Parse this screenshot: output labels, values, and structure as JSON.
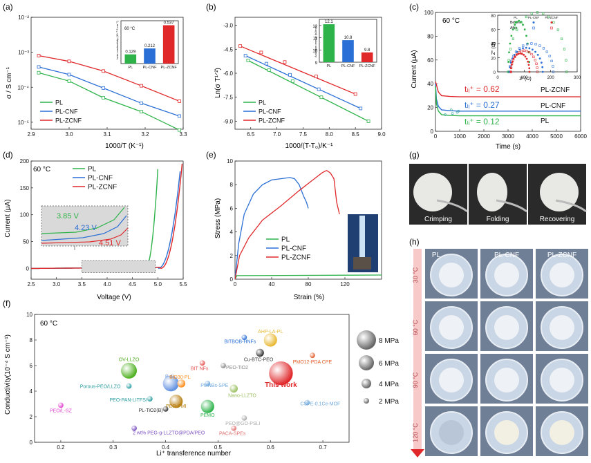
{
  "panel_labels": [
    "(a)",
    "(b)",
    "(c)",
    "(d)",
    "(e)",
    "(f)",
    "(g)",
    "(h)"
  ],
  "colors": {
    "PL": "#2db34a",
    "PL-CNF": "#2a6fd6",
    "PL-ZCNF": "#e0282b"
  },
  "chart_data": [
    {
      "panel": "(a)",
      "type": "line",
      "xlabel": "1000/T (K⁻¹)",
      "ylabel": "σ / S cm⁻¹",
      "xlim": [
        2.9,
        3.3
      ],
      "ylim_log10": [
        -5.2,
        -2
      ],
      "yscale": "log",
      "xticks": [
        "2.9",
        "3.0",
        "3.1",
        "3.2",
        "3.3"
      ],
      "yticks": [
        "10⁻⁵",
        "10⁻⁴",
        "10⁻³",
        "10⁻²"
      ],
      "x": [
        2.92,
        3.0,
        3.09,
        3.19,
        3.29
      ],
      "series": [
        {
          "name": "PL",
          "values": [
            0.00026,
            0.00015,
            5e-05,
            2e-05,
            6e-06
          ]
        },
        {
          "name": "PL-CNF",
          "values": [
            0.00038,
            0.00023,
            9.5e-05,
            3.5e-05,
            1.5e-05
          ]
        },
        {
          "name": "PL-ZCNF",
          "values": [
            0.0008,
            0.00055,
            0.00029,
            0.00011,
            4e-05
          ]
        }
      ],
      "inset": {
        "type": "bar",
        "title": "60 °C",
        "ylabel": "Ionic conductivity (10⁻³ S cm⁻¹)",
        "categories": [
          "PL",
          "PL-CNF",
          "PL-ZCNF"
        ],
        "values": [
          0.129,
          0.212,
          0.537
        ],
        "labels": [
          "0.129",
          "0.212",
          "0.537"
        ],
        "ylim": [
          0,
          0.6
        ]
      }
    },
    {
      "panel": "(b)",
      "type": "line",
      "xlabel": "1000/(T-T₀)/K⁻¹",
      "ylabel": "Ln(σ T¹ᐟ²)",
      "xlim": [
        6.2,
        9.0
      ],
      "ylim": [
        -9.5,
        -2.5
      ],
      "xticks": [
        "6.5",
        "7.0",
        "7.5",
        "8.0",
        "8.5",
        "9.0"
      ],
      "yticks": [
        "-3.0",
        "-4.5",
        "-6.0",
        "-7.5",
        "-9.0"
      ],
      "series": [
        {
          "name": "PL",
          "x": [
            6.45,
            6.85,
            7.3,
            7.85,
            8.75
          ],
          "values": [
            -5.2,
            -5.8,
            -6.5,
            -7.5,
            -9.0
          ]
        },
        {
          "name": "PL-CNF",
          "x": [
            6.4,
            6.8,
            7.25,
            7.8,
            8.6
          ],
          "values": [
            -4.9,
            -5.4,
            -6.1,
            -7.0,
            -8.2
          ]
        },
        {
          "name": "PL-ZCNF",
          "x": [
            6.3,
            6.7,
            7.15,
            7.75,
            8.5
          ],
          "values": [
            -4.3,
            -4.7,
            -5.3,
            -6.2,
            -7.3
          ]
        }
      ],
      "inset": {
        "type": "bar",
        "ylabel": "Activation energy (kJ/mol)",
        "categories": [
          "PL",
          "PL-CNF",
          "PL-ZCNF"
        ],
        "values": [
          12.1,
          10.8,
          9.8
        ],
        "labels": [
          "12.1",
          "10.8",
          "9.8"
        ],
        "ylim": [
          9,
          12.5
        ],
        "yticks": [
          "9",
          "10",
          "11",
          "12"
        ]
      }
    },
    {
      "panel": "(c)",
      "type": "line",
      "xlabel": "Time (s)",
      "ylabel": "Current (μA)",
      "annotation": "60 °C",
      "xlim": [
        0,
        6000
      ],
      "ylim": [
        0,
        100
      ],
      "xticks": [
        "0",
        "1000",
        "2000",
        "3000",
        "4000",
        "5000",
        "6000"
      ],
      "yticks": [
        "0",
        "20",
        "40",
        "60",
        "80",
        "100"
      ],
      "series": [
        {
          "name": "PL-ZCNF",
          "steady": 29,
          "t": "tₗᵢ⁺ = 0.62"
        },
        {
          "name": "PL-CNF",
          "steady": 17,
          "t": "tₗᵢ⁺ = 0.27"
        },
        {
          "name": "PL",
          "steady": 13,
          "t": "tₗᵢ⁺ = 0.12"
        }
      ],
      "inset": {
        "xlabel": "Z' (Ω)",
        "ylabel": "Z'' (Ω)",
        "xlim": [
          0,
          300
        ],
        "ylim": [
          0,
          80
        ],
        "xticks": [
          "0",
          "100",
          "200",
          "300"
        ],
        "yticks": [
          "0",
          "20",
          "40",
          "60",
          "80"
        ],
        "legend_rows": [
          "Before",
          "After"
        ]
      }
    },
    {
      "panel": "(d)",
      "type": "line",
      "xlabel": "Voltage (V)",
      "ylabel": "Current (μA)",
      "annotation": "60 °C",
      "xlim": [
        2.5,
        5.5
      ],
      "ylim": [
        -20,
        200
      ],
      "xticks": [
        "2.5",
        "3.0",
        "3.5",
        "4.0",
        "4.5",
        "5.0",
        "5.5"
      ],
      "yticks": [
        "0",
        "50",
        "100",
        "150",
        "200"
      ],
      "series": [
        {
          "name": "PL",
          "onset": 3.85,
          "label": "3.85 V"
        },
        {
          "name": "PL-CNF",
          "onset": 4.23,
          "label": "4.23 V"
        },
        {
          "name": "PL-ZCNF",
          "onset": 4.51,
          "label": "4.51 V"
        }
      ]
    },
    {
      "panel": "(e)",
      "type": "line",
      "xlabel": "Strain (%)",
      "ylabel": "Stress (MPa)",
      "xlim": [
        0,
        160
      ],
      "ylim": [
        0,
        10
      ],
      "xticks": [
        "0",
        "40",
        "80",
        "120"
      ],
      "yticks": [
        "0",
        "2",
        "4",
        "6",
        "8",
        "10"
      ],
      "series": [
        {
          "name": "PL",
          "x": [
            0,
            2,
            160
          ],
          "values": [
            0,
            0.3,
            0.35
          ]
        },
        {
          "name": "PL-CNF",
          "x": [
            0,
            4,
            10,
            20,
            30,
            40,
            50,
            60,
            65,
            70,
            75,
            78,
            80
          ],
          "values": [
            0,
            3,
            5.5,
            7.2,
            8.0,
            8.4,
            8.5,
            8.6,
            8.5,
            8.0,
            7.0,
            6.5,
            6.0
          ]
        },
        {
          "name": "PL-ZCNF",
          "x": [
            0,
            5,
            15,
            30,
            50,
            70,
            85,
            95,
            100,
            104,
            108,
            111,
            114
          ],
          "values": [
            0,
            2,
            3.5,
            5,
            6.2,
            7.5,
            8.4,
            9.0,
            9.2,
            9.0,
            8.5,
            6.5,
            5.5
          ]
        }
      ]
    },
    {
      "panel": "(f)",
      "type": "scatter",
      "xlabel": "Li⁺ transference number",
      "ylabel": "Conductivity(10⁻⁴ S cm⁻¹)",
      "annotation": "60 °C",
      "xlim": [
        0.15,
        0.75
      ],
      "ylim": [
        0,
        10
      ],
      "xticks": [
        "0.2",
        "0.3",
        "0.4",
        "0.5",
        "0.6",
        "0.7"
      ],
      "yticks": [
        "0",
        "2",
        "4",
        "6",
        "8",
        "10"
      ],
      "size_legend": [
        "8 MPa",
        "6 MPa",
        "4 MPa",
        "2 MPa"
      ],
      "points": [
        {
          "label": "PEO/L-SZ",
          "x": 0.2,
          "y": 2.9,
          "size": 1,
          "color": "#e040d0"
        },
        {
          "label": "2 wt% PEG-g-LLZTO@PDA/PEO",
          "x": 0.34,
          "y": 1.1,
          "size": 1,
          "color": "#7a4ec0"
        },
        {
          "label": "OV-LLZO",
          "x": 0.33,
          "y": 5.6,
          "size": 5,
          "color": "#4db01e"
        },
        {
          "label": "Porous-PEO/LLZO",
          "x": 0.33,
          "y": 4.4,
          "size": 1,
          "color": "#2a9ca0"
        },
        {
          "label": "PEO-PAN-LITFSI",
          "x": 0.37,
          "y": 3.4,
          "size": 1,
          "color": "#2a9ca0"
        },
        {
          "label": "PL-TiO2(B)",
          "x": 0.4,
          "y": 2.6,
          "size": 1,
          "color": "#333333"
        },
        {
          "label": "PEO-PMI",
          "x": 0.42,
          "y": 3.2,
          "size": 4,
          "color": "#b87e10"
        },
        {
          "label": "P-JI",
          "x": 0.41,
          "y": 4.6,
          "size": 5,
          "color": "#5f8fe0"
        },
        {
          "label": "BID30-PL",
          "x": 0.43,
          "y": 4.6,
          "size": 2,
          "color": "#ff8c1a"
        },
        {
          "label": "BIT NFs",
          "x": 0.47,
          "y": 6.2,
          "size": 1,
          "color": "#e65050"
        },
        {
          "label": "PEO-TiO2",
          "x": 0.51,
          "y": 6.0,
          "size": 1,
          "color": "#888888"
        },
        {
          "label": "PMNBs-SPE",
          "x": 0.48,
          "y": 4.6,
          "size": 1,
          "color": "#6fa8dc"
        },
        {
          "label": "PEMO",
          "x": 0.48,
          "y": 2.8,
          "size": 4,
          "color": "#2db34a"
        },
        {
          "label": "Nano-LLZTO",
          "x": 0.53,
          "y": 4.2,
          "size": 2,
          "color": "#9bbf60"
        },
        {
          "label": "PEO@GO-PSLI",
          "x": 0.55,
          "y": 1.9,
          "size": 1,
          "color": "#aaaaaa"
        },
        {
          "label": "PACA-SPEs",
          "x": 0.53,
          "y": 1.1,
          "size": 1,
          "color": "#e07070"
        },
        {
          "label": "BITBOB-HNFs",
          "x": 0.55,
          "y": 8.2,
          "size": 1,
          "color": "#2a6fd6"
        },
        {
          "label": "AHP-LA-PL",
          "x": 0.6,
          "y": 8.0,
          "size": 4,
          "color": "#e8b830"
        },
        {
          "label": "Cu-BTC-PEO",
          "x": 0.58,
          "y": 7.0,
          "size": 2,
          "color": "#333333"
        },
        {
          "label": "PMO12-PDA CPE",
          "x": 0.68,
          "y": 6.8,
          "size": 1,
          "color": "#e0602b"
        },
        {
          "label": "This work",
          "x": 0.62,
          "y": 5.4,
          "size": 8,
          "color": "#e0282b"
        },
        {
          "label": "CSPE-0.1Ce-MOF",
          "x": 0.67,
          "y": 3.1,
          "size": 1,
          "color": "#6fa8dc"
        }
      ]
    }
  ],
  "panel_g": {
    "captions": [
      "Crimping",
      "Folding",
      "Recovering"
    ]
  },
  "panel_h": {
    "columns": [
      "PL",
      "PL-CNF",
      "PL-ZCNF"
    ],
    "rows": [
      "30 °C",
      "60 °C",
      "90 °C",
      "120 °C"
    ]
  }
}
